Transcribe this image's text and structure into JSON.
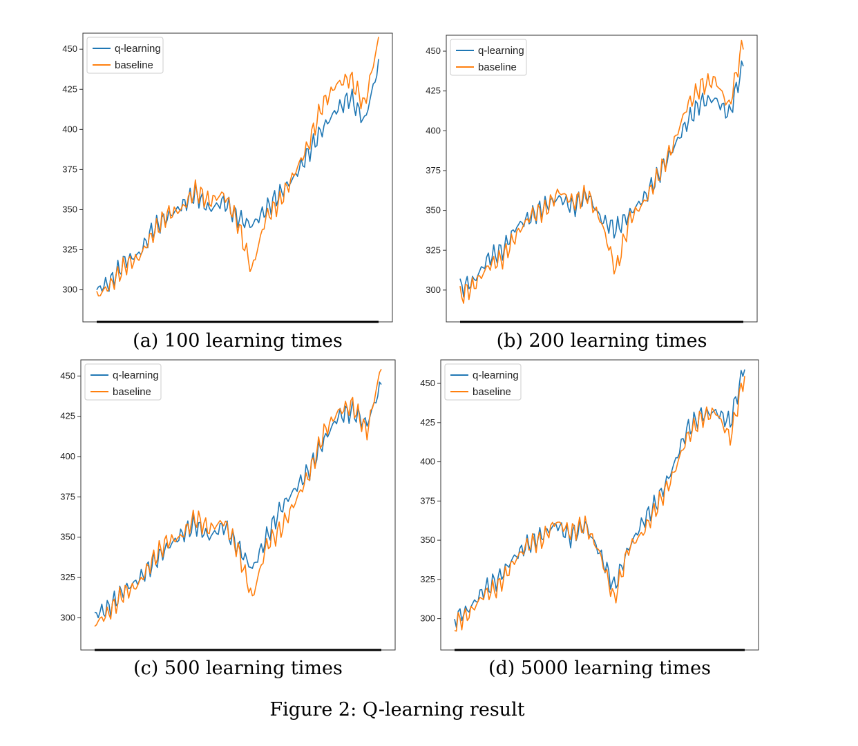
{
  "figure_caption": "Figure 2: Q-learning result",
  "colors": {
    "q_learning": "#1f77b4",
    "baseline": "#ff7f0e"
  },
  "chart_data": [
    {
      "type": "line",
      "caption": "(a) 100 learning times",
      "ylim": [
        280,
        460
      ],
      "yticks": [
        300,
        325,
        350,
        375,
        400,
        425,
        450
      ],
      "legend_position": "top-left",
      "grid": false,
      "x": [
        0,
        5,
        10,
        15,
        20,
        25,
        30,
        35,
        40,
        45,
        50,
        55,
        60,
        65,
        70,
        75,
        80,
        85,
        90,
        95,
        100
      ],
      "series": [
        {
          "name": "q-learning",
          "values": [
            300,
            305,
            318,
            322,
            338,
            345,
            352,
            360,
            350,
            355,
            345,
            340,
            350,
            360,
            370,
            385,
            400,
            412,
            420,
            405,
            440
          ]
        },
        {
          "name": "baseline",
          "values": [
            296,
            303,
            315,
            320,
            335,
            347,
            350,
            362,
            355,
            360,
            342,
            312,
            345,
            355,
            372,
            390,
            415,
            428,
            432,
            415,
            456
          ]
        }
      ]
    },
    {
      "type": "line",
      "caption": "(b) 200 learning times",
      "ylim": [
        280,
        460
      ],
      "yticks": [
        300,
        325,
        350,
        375,
        400,
        425,
        450
      ],
      "legend_position": "top-left",
      "grid": false,
      "x": [
        0,
        5,
        10,
        15,
        20,
        25,
        30,
        35,
        40,
        45,
        50,
        55,
        60,
        65,
        70,
        75,
        80,
        85,
        90,
        95,
        100
      ],
      "series": [
        {
          "name": "q-learning",
          "values": [
            301,
            306,
            320,
            325,
            340,
            346,
            353,
            358,
            352,
            360,
            344,
            338,
            348,
            358,
            372,
            388,
            405,
            418,
            420,
            410,
            442
          ]
        },
        {
          "name": "baseline",
          "values": [
            296,
            303,
            315,
            320,
            335,
            347,
            350,
            362,
            355,
            360,
            342,
            312,
            345,
            355,
            372,
            390,
            415,
            428,
            432,
            415,
            456
          ]
        }
      ]
    },
    {
      "type": "line",
      "caption": "(c) 500 learning times",
      "ylim": [
        280,
        460
      ],
      "yticks": [
        300,
        325,
        350,
        375,
        400,
        425,
        450
      ],
      "legend_position": "top-left",
      "grid": false,
      "x": [
        0,
        5,
        10,
        15,
        20,
        25,
        30,
        35,
        40,
        45,
        50,
        55,
        60,
        65,
        70,
        75,
        80,
        85,
        90,
        95,
        100
      ],
      "series": [
        {
          "name": "q-learning",
          "values": [
            302,
            306,
            317,
            323,
            333,
            343,
            351,
            358,
            350,
            357,
            344,
            330,
            350,
            368,
            380,
            392,
            410,
            425,
            428,
            420,
            445
          ]
        },
        {
          "name": "baseline",
          "values": [
            296,
            303,
            315,
            320,
            335,
            347,
            350,
            362,
            355,
            360,
            342,
            312,
            345,
            355,
            372,
            390,
            415,
            428,
            432,
            415,
            456
          ]
        }
      ]
    },
    {
      "type": "line",
      "caption": "(d) 5000 learning times",
      "ylim": [
        280,
        465
      ],
      "yticks": [
        300,
        325,
        350,
        375,
        400,
        425,
        450
      ],
      "legend_position": "top-left",
      "grid": false,
      "x": [
        0,
        5,
        10,
        15,
        20,
        25,
        30,
        35,
        40,
        45,
        50,
        55,
        60,
        65,
        70,
        75,
        80,
        85,
        90,
        95,
        100
      ],
      "series": [
        {
          "name": "q-learning",
          "values": [
            300,
            306,
            318,
            325,
            338,
            347,
            353,
            360,
            352,
            360,
            342,
            320,
            345,
            362,
            375,
            395,
            420,
            430,
            432,
            425,
            462
          ]
        },
        {
          "name": "baseline",
          "values": [
            296,
            303,
            315,
            320,
            335,
            347,
            350,
            362,
            355,
            360,
            342,
            312,
            345,
            355,
            372,
            390,
            415,
            428,
            432,
            415,
            456
          ]
        }
      ]
    }
  ]
}
